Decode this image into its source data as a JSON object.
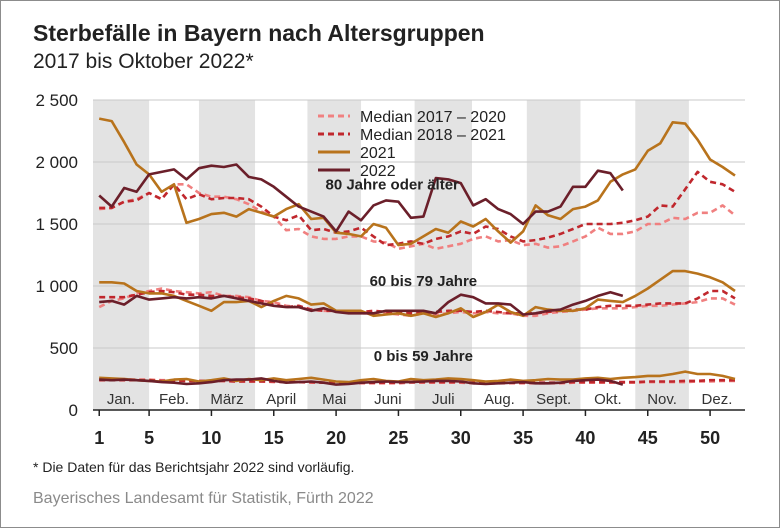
{
  "title": "Sterbefälle in Bayern nach Altersgruppen",
  "subtitle": "2017 bis Oktober 2022*",
  "footnote": "* Die Daten für das Berichtsjahr 2022 sind vorläufig.",
  "source": "Bayerisches Landesamt für Statistik, Fürth 2022",
  "colors": {
    "median_2017_2020": "#f08080",
    "median_2018_2021": "#c0272d",
    "y2021": "#b8731c",
    "y2022": "#6b1f2a",
    "month_band": "#e3e3e3",
    "grid": "#c8c8c8"
  },
  "chart_data": {
    "type": "line",
    "xlabel": "",
    "ylabel": "",
    "xlim": [
      0.5,
      52.8
    ],
    "ylim": [
      0,
      2500
    ],
    "x_ticks": [
      1,
      5,
      10,
      15,
      20,
      25,
      30,
      35,
      40,
      45,
      50
    ],
    "y_ticks": [
      0,
      500,
      1000,
      1500,
      2000,
      2500
    ],
    "y_tick_labels": [
      "0",
      "500",
      "1 000",
      "1 500",
      "2 000",
      "2 500"
    ],
    "grid": "horizontal",
    "legend_position": "top-center",
    "months": [
      {
        "label": "Jan.",
        "start": 0.5,
        "end": 5.0,
        "shaded": true
      },
      {
        "label": "Feb.",
        "start": 5.0,
        "end": 9.0,
        "shaded": false
      },
      {
        "label": "März",
        "start": 9.0,
        "end": 13.5,
        "shaded": true
      },
      {
        "label": "April",
        "start": 13.5,
        "end": 17.7,
        "shaded": false
      },
      {
        "label": "Mai",
        "start": 17.7,
        "end": 22.0,
        "shaded": true
      },
      {
        "label": "Juni",
        "start": 22.0,
        "end": 26.3,
        "shaded": false
      },
      {
        "label": "Juli",
        "start": 26.3,
        "end": 30.9,
        "shaded": true
      },
      {
        "label": "Aug.",
        "start": 30.9,
        "end": 35.3,
        "shaded": false
      },
      {
        "label": "Sept.",
        "start": 35.3,
        "end": 39.6,
        "shaded": true
      },
      {
        "label": "Okt.",
        "start": 39.6,
        "end": 44.0,
        "shaded": false
      },
      {
        "label": "Nov.",
        "start": 44.0,
        "end": 48.3,
        "shaded": true
      },
      {
        "label": "Dez.",
        "start": 48.3,
        "end": 52.8,
        "shaded": false
      }
    ],
    "annotations": [
      {
        "text": "80 Jahre oder älter",
        "x": 24.5,
        "y": 1780
      },
      {
        "text": "60 bis 79 Jahre",
        "x": 27.0,
        "y": 1000
      },
      {
        "text": "0 bis 59 Jahre",
        "x": 27.0,
        "y": 395
      }
    ],
    "series": [
      {
        "name": "Median 2017 – 2020",
        "style": "dashed",
        "color": "#f08080",
        "group": "80+",
        "values": [
          1620,
          1630,
          1680,
          1700,
          1750,
          1700,
          1820,
          1820,
          1750,
          1720,
          1720,
          1700,
          1660,
          1600,
          1560,
          1450,
          1460,
          1400,
          1380,
          1380,
          1400,
          1400,
          1360,
          1350,
          1300,
          1320,
          1340,
          1300,
          1320,
          1340,
          1380,
          1400,
          1360,
          1370,
          1330,
          1340,
          1310,
          1320,
          1360,
          1400,
          1470,
          1420,
          1420,
          1440,
          1500,
          1500,
          1550,
          1540,
          1590,
          1590,
          1650,
          1570
        ]
      },
      {
        "name": "Median 2018 – 2021",
        "style": "dashed",
        "color": "#c0272d",
        "group": "80+",
        "values": [
          1630,
          1630,
          1680,
          1690,
          1750,
          1700,
          1820,
          1700,
          1740,
          1700,
          1710,
          1710,
          1700,
          1640,
          1560,
          1530,
          1570,
          1450,
          1460,
          1430,
          1440,
          1470,
          1400,
          1330,
          1340,
          1360,
          1340,
          1380,
          1400,
          1440,
          1420,
          1480,
          1460,
          1400,
          1360,
          1370,
          1390,
          1420,
          1460,
          1500,
          1500,
          1500,
          1510,
          1530,
          1560,
          1650,
          1640,
          1780,
          1920,
          1840,
          1820,
          1760
        ]
      },
      {
        "name": "2021",
        "style": "solid",
        "color": "#b8731c",
        "group": "80+",
        "values": [
          2350,
          2330,
          2160,
          1980,
          1900,
          1760,
          1820,
          1510,
          1540,
          1580,
          1590,
          1560,
          1620,
          1590,
          1560,
          1620,
          1660,
          1540,
          1550,
          1430,
          1420,
          1400,
          1500,
          1470,
          1330,
          1340,
          1400,
          1460,
          1430,
          1520,
          1480,
          1540,
          1440,
          1350,
          1440,
          1650,
          1570,
          1540,
          1620,
          1640,
          1690,
          1840,
          1900,
          1940,
          2090,
          2150,
          2320,
          2310,
          2180,
          2020,
          1960,
          1890
        ]
      },
      {
        "name": "2022",
        "style": "solid",
        "color": "#6b1f2a",
        "group": "80+",
        "values": [
          1730,
          1640,
          1790,
          1760,
          1900,
          1920,
          1940,
          1860,
          1950,
          1970,
          1960,
          1980,
          1880,
          1860,
          1800,
          1720,
          1640,
          1600,
          1560,
          1440,
          1600,
          1530,
          1650,
          1690,
          1680,
          1550,
          1560,
          1870,
          1860,
          1830,
          1650,
          1700,
          1620,
          1580,
          1500,
          1600,
          1600,
          1640,
          1800,
          1800,
          1930,
          1910,
          1770
        ]
      },
      {
        "name": "Median 2017 – 2020 (60–79)",
        "style": "dashed",
        "color": "#f08080",
        "group": "60-79",
        "values": [
          830,
          880,
          900,
          940,
          960,
          980,
          960,
          950,
          940,
          950,
          920,
          920,
          910,
          880,
          870,
          840,
          830,
          810,
          800,
          800,
          800,
          780,
          780,
          780,
          770,
          760,
          780,
          770,
          780,
          790,
          780,
          790,
          780,
          780,
          760,
          760,
          780,
          790,
          800,
          810,
          820,
          820,
          820,
          830,
          840,
          840,
          850,
          860,
          870,
          900,
          900,
          850
        ]
      },
      {
        "name": "Median 2018 – 2021 (60–79)",
        "style": "dashed",
        "color": "#c0272d",
        "group": "60-79",
        "values": [
          910,
          910,
          910,
          930,
          950,
          960,
          950,
          930,
          930,
          920,
          920,
          910,
          900,
          880,
          850,
          830,
          840,
          810,
          800,
          800,
          790,
          790,
          800,
          790,
          780,
          780,
          780,
          790,
          800,
          800,
          790,
          800,
          790,
          780,
          780,
          780,
          790,
          800,
          810,
          810,
          830,
          840,
          840,
          840,
          850,
          860,
          860,
          860,
          900,
          960,
          960,
          900
        ]
      },
      {
        "name": "2021 (60–79)",
        "style": "solid",
        "color": "#b8731c",
        "group": "60-79",
        "values": [
          1030,
          1030,
          1020,
          960,
          940,
          940,
          920,
          880,
          840,
          800,
          870,
          870,
          880,
          830,
          880,
          920,
          900,
          850,
          860,
          800,
          800,
          800,
          760,
          770,
          780,
          760,
          780,
          750,
          780,
          820,
          750,
          790,
          850,
          790,
          760,
          830,
          810,
          800,
          800,
          820,
          890,
          880,
          870,
          920,
          980,
          1050,
          1120,
          1120,
          1100,
          1070,
          1030,
          960
        ]
      },
      {
        "name": "2022 (60–79)",
        "style": "solid",
        "color": "#6b1f2a",
        "group": "60-79",
        "values": [
          870,
          880,
          850,
          920,
          890,
          900,
          910,
          900,
          910,
          900,
          920,
          900,
          880,
          860,
          840,
          830,
          830,
          800,
          820,
          790,
          780,
          780,
          780,
          800,
          800,
          800,
          800,
          780,
          870,
          930,
          910,
          860,
          860,
          850,
          770,
          780,
          800,
          810,
          850,
          880,
          920,
          950,
          920
        ]
      },
      {
        "name": "Median 2017 – 2020 (0–59)",
        "style": "dashed",
        "color": "#f08080",
        "group": "0-59",
        "values": [
          250,
          250,
          250,
          245,
          245,
          240,
          240,
          235,
          235,
          235,
          235,
          230,
          230,
          230,
          225,
          225,
          225,
          220,
          220,
          220,
          215,
          215,
          215,
          215,
          215,
          220,
          220,
          220,
          220,
          220,
          215,
          215,
          215,
          215,
          215,
          215,
          215,
          215,
          220,
          220,
          220,
          220,
          220,
          220,
          225,
          225,
          225,
          225,
          230,
          230,
          235,
          235
        ]
      },
      {
        "name": "Median 2018 – 2021 (0–59)",
        "style": "dashed",
        "color": "#c0272d",
        "group": "0-59",
        "values": [
          240,
          240,
          240,
          240,
          240,
          235,
          235,
          235,
          235,
          235,
          235,
          230,
          230,
          230,
          230,
          225,
          225,
          225,
          220,
          220,
          220,
          220,
          220,
          220,
          220,
          225,
          225,
          225,
          225,
          225,
          220,
          220,
          220,
          220,
          220,
          220,
          220,
          220,
          225,
          225,
          225,
          225,
          225,
          225,
          230,
          230,
          230,
          235,
          235,
          240,
          240,
          240
        ]
      },
      {
        "name": "2021 (0–59)",
        "style": "solid",
        "color": "#b8731c",
        "group": "0-59",
        "values": [
          260,
          255,
          250,
          240,
          235,
          230,
          245,
          250,
          230,
          240,
          255,
          235,
          250,
          240,
          255,
          240,
          250,
          260,
          245,
          230,
          225,
          240,
          250,
          235,
          230,
          250,
          240,
          245,
          255,
          250,
          240,
          230,
          235,
          245,
          235,
          240,
          250,
          245,
          245,
          255,
          260,
          250,
          260,
          265,
          275,
          275,
          290,
          310,
          290,
          290,
          275,
          250
        ]
      },
      {
        "name": "2022 (0–59)",
        "style": "solid",
        "color": "#6b1f2a",
        "group": "0-59",
        "values": [
          245,
          240,
          245,
          240,
          235,
          225,
          220,
          210,
          215,
          225,
          240,
          245,
          245,
          255,
          235,
          220,
          225,
          230,
          220,
          205,
          210,
          220,
          225,
          230,
          225,
          225,
          230,
          235,
          235,
          230,
          215,
          210,
          215,
          220,
          225,
          215,
          215,
          220,
          235,
          240,
          245,
          235,
          205
        ]
      }
    ]
  }
}
